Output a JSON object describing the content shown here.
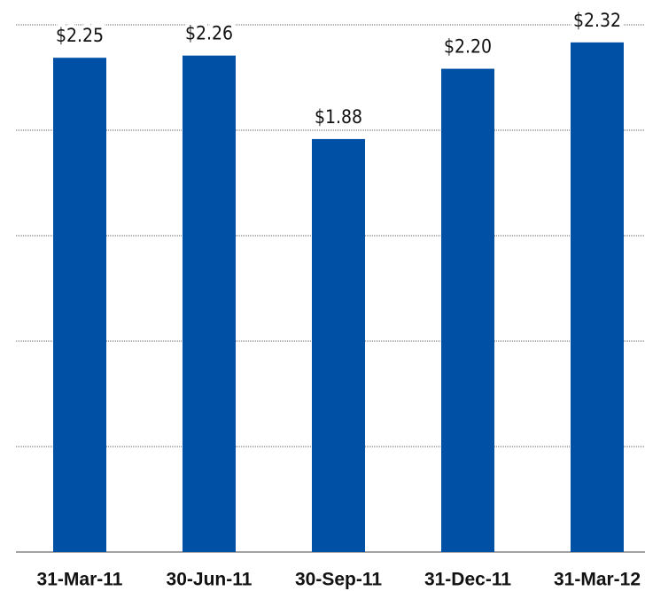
{
  "chart_data": {
    "type": "bar",
    "categories": [
      "31-Mar-11",
      "30-Jun-11",
      "30-Sep-11",
      "31-Dec-11",
      "31-Mar-12"
    ],
    "values": [
      2.25,
      2.26,
      1.88,
      2.2,
      2.32
    ],
    "value_labels": [
      "$2.25",
      "$2.26",
      "$1.88",
      "$2.20",
      "$2.32"
    ],
    "color": "#0050a5",
    "ylim": [
      0,
      2.4
    ],
    "yticks": [
      0,
      0.48,
      0.96,
      1.44,
      1.92,
      2.4
    ],
    "grid": true
  }
}
